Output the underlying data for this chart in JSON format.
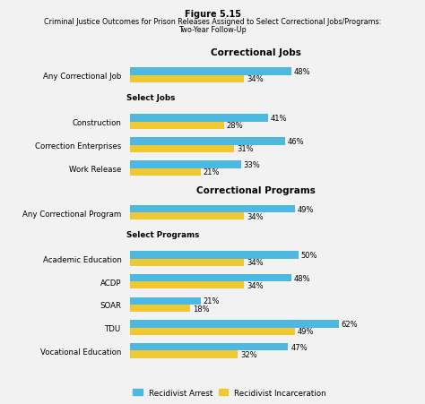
{
  "title_line1": "Figure 5.15",
  "title_line2": "Criminal Justice Outcomes for Prison Releases Assigned to Select Correctional Jobs/Programs:",
  "title_line3": "Two-Year Follow-Up",
  "section1_title": "Correctional Jobs",
  "section2_title": "Correctional Programs",
  "jobs_labels": [
    "Any Correctional Job",
    "",
    "Construction",
    "Correction Enterprises",
    "Work Release"
  ],
  "jobs_arrest": [
    48,
    0,
    41,
    46,
    33
  ],
  "jobs_incarceration": [
    34,
    0,
    28,
    31,
    21
  ],
  "programs_labels": [
    "Any Correctional Program",
    "",
    "Academic Education",
    "ACDP",
    "SOAR",
    "TDU",
    "Vocational Education"
  ],
  "programs_arrest": [
    49,
    0,
    50,
    48,
    21,
    62,
    47
  ],
  "programs_incarceration": [
    34,
    0,
    34,
    34,
    18,
    49,
    32
  ],
  "color_arrest": "#4db8e0",
  "color_incarceration": "#f0c832",
  "bar_height": 0.32,
  "background_color": "#f2f2f2",
  "legend_arrest": "Recidivist Arrest",
  "legend_incarceration": "Recidivist Incarceration",
  "select_jobs_label": "Select Jobs",
  "select_programs_label": "Select Programs",
  "xlim": 75
}
